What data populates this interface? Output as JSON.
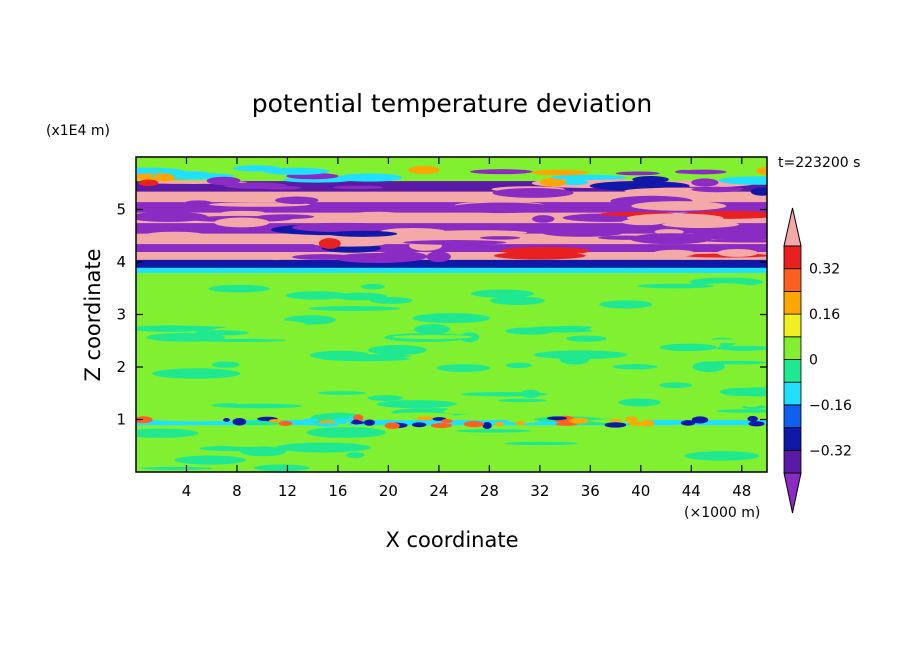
{
  "chart_data": {
    "type": "heatmap",
    "title": "potential temperature deviation",
    "time_label": "t=223200 s",
    "xlabel": "X coordinate",
    "ylabel": "Z coordinate",
    "x_unit": "(×1000 m)",
    "y_unit": "(x1E4 m)",
    "xlim": [
      0,
      50
    ],
    "ylim": [
      0,
      6
    ],
    "x_ticks": [
      4,
      8,
      12,
      16,
      20,
      24,
      28,
      32,
      36,
      40,
      44,
      48
    ],
    "y_ticks": [
      1,
      2,
      3,
      4,
      5
    ],
    "colorbar": {
      "levels": [
        -0.48,
        -0.4,
        -0.32,
        -0.24,
        -0.16,
        -0.08,
        0,
        0.08,
        0.16,
        0.24,
        0.32,
        0.4,
        0.48
      ],
      "tick_labels": [
        {
          "value": 0.32,
          "text": "0.32"
        },
        {
          "value": 0.16,
          "text": "0.16"
        },
        {
          "value": 0,
          "text": "0"
        },
        {
          "value": -0.16,
          "text": "−0.16"
        },
        {
          "value": -0.32,
          "text": "−0.32"
        }
      ],
      "colors": [
        "#8a2bc4",
        "#5b1aa6",
        "#1018a8",
        "#1060f0",
        "#20e0ff",
        "#20e890",
        "#80f030",
        "#f0f020",
        "#ffa500",
        "#ff6020",
        "#e82020",
        "#f4a8a8"
      ],
      "extend": "both"
    },
    "bands": [
      {
        "z0": 0.0,
        "z1": 0.9,
        "value": 0.03
      },
      {
        "z0": 0.9,
        "z1": 1.0,
        "value": -0.13
      },
      {
        "z0": 1.0,
        "z1": 2.4,
        "value": 0.04
      },
      {
        "z0": 2.4,
        "z1": 3.8,
        "value": 0.02
      },
      {
        "z0": 3.8,
        "z1": 3.9,
        "value": -0.12
      },
      {
        "z0": 3.9,
        "z1": 4.05,
        "value": -0.3
      },
      {
        "z0": 4.05,
        "z1": 4.2,
        "value": 0.45
      },
      {
        "z0": 4.2,
        "z1": 4.35,
        "value": -0.45
      },
      {
        "z0": 4.35,
        "z1": 4.55,
        "value": 0.45
      },
      {
        "z0": 4.55,
        "z1": 4.75,
        "value": -0.45
      },
      {
        "z0": 4.75,
        "z1": 4.95,
        "value": 0.45
      },
      {
        "z0": 4.95,
        "z1": 5.15,
        "value": -0.45
      },
      {
        "z0": 5.15,
        "z1": 5.35,
        "value": 0.45
      },
      {
        "z0": 5.35,
        "z1": 5.55,
        "value": -0.4
      },
      {
        "z0": 5.55,
        "z1": 5.8,
        "value": 0.03
      },
      {
        "z0": 5.8,
        "z1": 6.0,
        "value": 0.02
      }
    ]
  }
}
